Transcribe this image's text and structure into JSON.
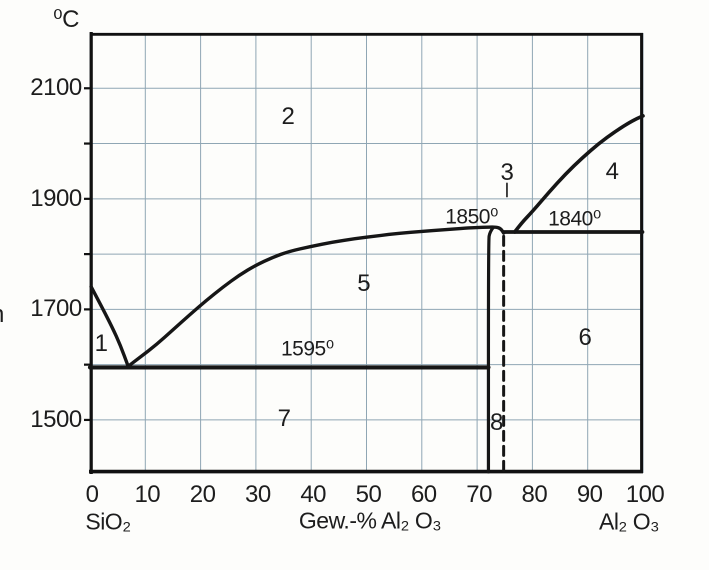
{
  "axes": {
    "y_unit": "⁰C",
    "x_left_label": "SiO₂",
    "x_axis_title": "Gew.-% Al₂ O₃",
    "x_right_label": "Al₂ O₃",
    "y_tick_labels": [
      "2100",
      "1900",
      "1700",
      "1500"
    ],
    "x_tick_labels": [
      "0",
      "10",
      "20",
      "30",
      "40",
      "50",
      "60",
      "70",
      "80",
      "90",
      "100"
    ]
  },
  "annotations": {
    "edge_fragment": "n"
  },
  "colors": {
    "curve": "#161616",
    "frame": "#111111",
    "grid": "#8fa6b4",
    "text": "#1d1d1d",
    "background": "#fdfdfb"
  },
  "chart_data": {
    "type": "line",
    "title": "",
    "xlabel": "Gew.-% Al₂ O₃",
    "ylabel": "⁰C",
    "xlim": [
      0,
      100
    ],
    "ylim": [
      1404,
      2200
    ],
    "grid": true,
    "x_grid_values": [
      0,
      10,
      20,
      30,
      40,
      50,
      60,
      70,
      80,
      90,
      100
    ],
    "y_grid_values": [
      2100,
      2000,
      1900,
      1800,
      1700,
      1600,
      1500
    ],
    "y_tick_values": [
      2100,
      1900,
      1700,
      1500
    ],
    "x_tick_values": [
      0,
      10,
      20,
      30,
      40,
      50,
      60,
      70,
      80,
      90,
      100
    ],
    "curves": [
      {
        "name": "sio2-liquidus",
        "style": "solid",
        "width": 3.4,
        "points": [
          [
            0.2,
            1741
          ],
          [
            2,
            1707
          ],
          [
            4,
            1668
          ],
          [
            5.5,
            1635
          ],
          [
            6.9,
            1597
          ]
        ]
      },
      {
        "name": "mullite-liquidus",
        "style": "solid",
        "width": 3.4,
        "points": [
          [
            6.9,
            1597
          ],
          [
            9,
            1613
          ],
          [
            12,
            1636
          ],
          [
            15,
            1663
          ],
          [
            18,
            1690
          ],
          [
            21,
            1716
          ],
          [
            24,
            1740
          ],
          [
            27,
            1762
          ],
          [
            30,
            1780
          ],
          [
            33,
            1794
          ],
          [
            36,
            1805
          ],
          [
            40,
            1814
          ],
          [
            44,
            1822
          ],
          [
            48,
            1828
          ],
          [
            52,
            1833
          ],
          [
            56,
            1838
          ],
          [
            60,
            1841
          ],
          [
            64,
            1844
          ],
          [
            68,
            1847
          ],
          [
            70,
            1848
          ],
          [
            72,
            1849
          ],
          [
            73.5,
            1849
          ],
          [
            74.3,
            1846
          ],
          [
            74.8,
            1838
          ]
        ]
      },
      {
        "name": "mullite-left-boundary",
        "style": "solid",
        "width": 3.2,
        "points": [
          [
            72.9,
            1848
          ],
          [
            72.3,
            1840
          ],
          [
            72.05,
            1825
          ],
          [
            72.05,
            1406
          ]
        ]
      },
      {
        "name": "mullite-right-boundary-dashed",
        "style": "dashed",
        "width": 3.0,
        "points": [
          [
            74.8,
            1832
          ],
          [
            74.8,
            1406
          ]
        ]
      },
      {
        "name": "corundum-liquidus",
        "style": "solid",
        "width": 3.6,
        "points": [
          [
            76.8,
            1840
          ],
          [
            78,
            1856
          ],
          [
            80,
            1877
          ],
          [
            83,
            1912
          ],
          [
            86,
            1945
          ],
          [
            89,
            1974
          ],
          [
            92,
            2000
          ],
          [
            95,
            2022
          ],
          [
            98,
            2041
          ],
          [
            100,
            2050
          ]
        ]
      },
      {
        "name": "eutectic-isotherm-1595",
        "style": "solid",
        "width": 4.2,
        "points": [
          [
            0,
            1595
          ],
          [
            72.05,
            1595
          ]
        ]
      },
      {
        "name": "eutectic-isotherm-1840",
        "style": "solid",
        "width": 3.8,
        "points": [
          [
            74.8,
            1840
          ],
          [
            99.9,
            1840
          ]
        ]
      },
      {
        "name": "region3-leader",
        "style": "solid",
        "width": 1.6,
        "points": [
          [
            75.4,
            1928
          ],
          [
            75.4,
            1904
          ]
        ]
      }
    ],
    "regions": [
      {
        "label": "1",
        "x": 2.0,
        "t": 1637
      },
      {
        "label": "2",
        "x": 35.8,
        "t": 2048
      },
      {
        "label": "3",
        "x": 75.4,
        "t": 1947
      },
      {
        "label": "4",
        "x": 94.4,
        "t": 1948
      },
      {
        "label": "5",
        "x": 49.5,
        "t": 1746
      },
      {
        "label": "6",
        "x": 89.5,
        "t": 1648
      },
      {
        "label": "7",
        "x": 35.1,
        "t": 1502
      },
      {
        "label": "8",
        "x": 73.5,
        "t": 1495
      }
    ],
    "temp_labels": [
      {
        "name": "temp-1850",
        "text": "1850⁰",
        "x": 69.0,
        "t": 1868
      },
      {
        "name": "temp-1840",
        "text": "1840⁰",
        "x": 87.6,
        "t": 1863
      },
      {
        "name": "temp-1595",
        "text": "1595⁰",
        "x": 39.3,
        "t": 1628
      }
    ]
  }
}
